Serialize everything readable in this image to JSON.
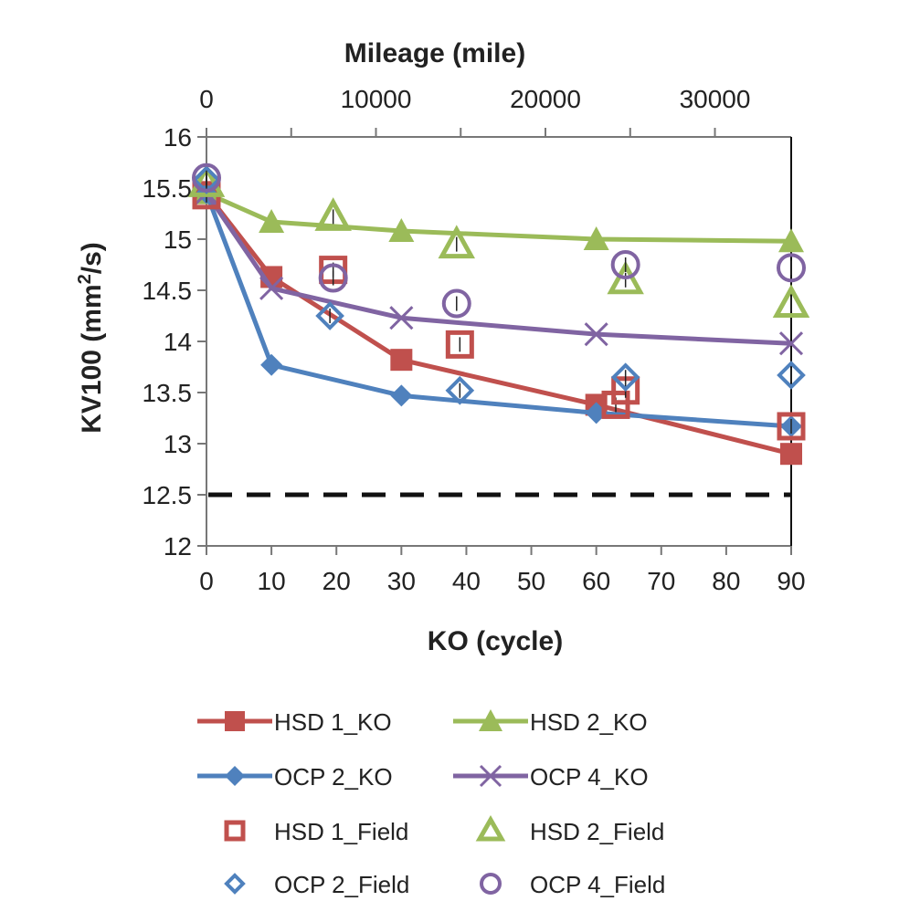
{
  "chart_data": {
    "type": "line",
    "title": "",
    "xlabel": "KO (cycle)",
    "ylabel_main": "KV100 (mm",
    "ylabel_sup": "2",
    "ylabel_tail": "/s)",
    "x2label": "Mileage (mile)",
    "xlim": [
      0,
      90
    ],
    "ylim": [
      12,
      16
    ],
    "x2lim": [
      0,
      34500
    ],
    "x_ticks": [
      "0",
      "10",
      "20",
      "30",
      "40",
      "50",
      "60",
      "70",
      "80",
      "90"
    ],
    "y_ticks": [
      "12",
      "12.5",
      "13",
      "13.5",
      "14",
      "14.5",
      "15",
      "15.5",
      "16"
    ],
    "x2_ticks": [
      "0",
      "10000",
      "20000",
      "30000"
    ],
    "limit_line": {
      "y": 12.5,
      "style": "dashed"
    },
    "ko_series": [
      {
        "name": "HSD 1_KO",
        "color": "#c0504d",
        "marker": "square",
        "x": [
          0,
          10,
          30,
          60,
          90
        ],
        "y": [
          15.45,
          14.63,
          13.82,
          13.38,
          12.9
        ]
      },
      {
        "name": "HSD 2_KO",
        "color": "#9bbb59",
        "marker": "triangle",
        "x": [
          0,
          10,
          30,
          60,
          90
        ],
        "y": [
          15.45,
          15.17,
          15.08,
          15.0,
          14.98
        ]
      },
      {
        "name": "OCP 2_KO",
        "color": "#4f81bd",
        "marker": "diamond",
        "x": [
          0,
          10,
          30,
          60,
          90
        ],
        "y": [
          15.45,
          13.77,
          13.47,
          13.3,
          13.17
        ]
      },
      {
        "name": "OCP 4_KO",
        "color": "#8064a2",
        "marker": "x",
        "x": [
          0,
          10,
          30,
          60,
          90
        ],
        "y": [
          15.45,
          14.52,
          14.23,
          14.07,
          13.98
        ]
      }
    ],
    "field_series": [
      {
        "name": "HSD 1_Field",
        "color": "#c0504d",
        "marker": "open-square",
        "x": [
          0,
          19.5,
          39,
          63,
          64.5,
          90
        ],
        "y": [
          15.43,
          14.7,
          13.97,
          13.38,
          13.52,
          13.17
        ]
      },
      {
        "name": "HSD 2_Field",
        "color": "#9bbb59",
        "marker": "open-triangle",
        "x": [
          0,
          19.5,
          38.5,
          64.5,
          90
        ],
        "y": [
          15.55,
          15.22,
          14.95,
          14.6,
          14.37
        ]
      },
      {
        "name": "OCP 2_Field",
        "color": "#4f81bd",
        "marker": "open-diamond",
        "x": [
          0,
          19,
          39,
          64.5,
          90
        ],
        "y": [
          15.58,
          14.25,
          13.52,
          13.65,
          13.67
        ]
      },
      {
        "name": "OCP 4_Field",
        "color": "#8064a2",
        "marker": "open-circle",
        "x": [
          0,
          19.5,
          38.5,
          64.5,
          90
        ],
        "y": [
          15.6,
          14.62,
          14.37,
          14.75,
          14.72
        ]
      }
    ]
  }
}
